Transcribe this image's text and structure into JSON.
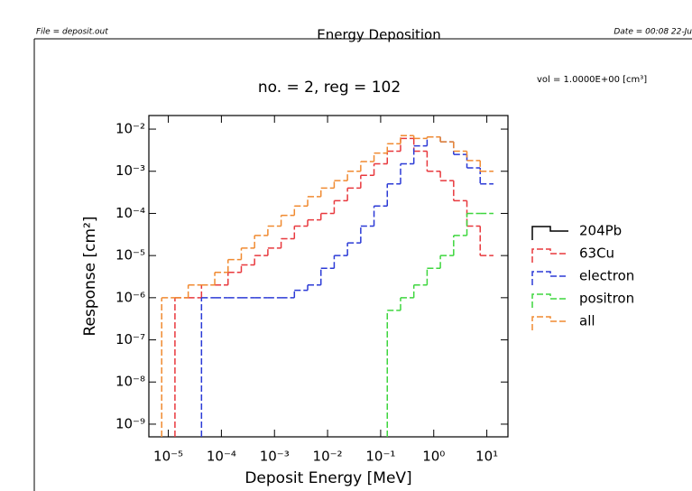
{
  "chart_data": {
    "type": "step",
    "title": "Energy Deposition",
    "subtitle": "no. =  2,  reg =    102",
    "file": "File = deposit.out",
    "date": "Date = 00:08 22-Ju",
    "annotation": "vol  =   1.0000E+00 [cm³]",
    "xlabel": "Deposit Energy [MeV]",
    "ylabel": "Response [cm²]",
    "log_x": true,
    "log_y": true,
    "xlim": [
      4.3e-06,
      25
    ],
    "ylim": [
      5e-10,
      0.021
    ],
    "xticks": [
      {
        "value": 1e-05,
        "label": "10⁻⁵"
      },
      {
        "value": 0.0001,
        "label": "10⁻⁴"
      },
      {
        "value": 0.001,
        "label": "10⁻³"
      },
      {
        "value": 0.01,
        "label": "10⁻²"
      },
      {
        "value": 0.1,
        "label": "10⁻¹"
      },
      {
        "value": 1,
        "label": "10⁰"
      },
      {
        "value": 10,
        "label": "10¹"
      }
    ],
    "yticks": [
      {
        "value": 1e-09,
        "label": "10⁻⁹"
      },
      {
        "value": 1e-08,
        "label": "10⁻⁸"
      },
      {
        "value": 1e-07,
        "label": "10⁻⁷"
      },
      {
        "value": 1e-06,
        "label": "10⁻⁶"
      },
      {
        "value": 1e-05,
        "label": "10⁻⁵"
      },
      {
        "value": 0.0001,
        "label": "10⁻⁴"
      },
      {
        "value": 0.001,
        "label": "10⁻³"
      },
      {
        "value": 0.01,
        "label": "10⁻²"
      }
    ],
    "x": [
      1e-05,
      1.778e-05,
      3.162e-05,
      5.623e-05,
      0.0001,
      0.0001778,
      0.0003162,
      0.0005623,
      0.001,
      0.001778,
      0.003162,
      0.005623,
      0.01,
      0.01778,
      0.03162,
      0.05623,
      0.1,
      0.1778,
      0.3162,
      0.5623,
      1,
      1.778,
      3.162,
      5.623,
      10
    ],
    "series": [
      {
        "name": "204Pb",
        "color": "#000000",
        "values": [
          null,
          null,
          null,
          null,
          null,
          null,
          null,
          null,
          null,
          null,
          null,
          null,
          null,
          null,
          null,
          null,
          null,
          null,
          null,
          null,
          null,
          null,
          null,
          null,
          null
        ]
      },
      {
        "name": "63Cu",
        "color": "#e8383d",
        "values": [
          null,
          1e-06,
          1e-06,
          2e-06,
          2e-06,
          4e-06,
          6e-06,
          1e-05,
          1.5e-05,
          2.5e-05,
          5e-05,
          7e-05,
          0.0001,
          0.0002,
          0.0004,
          0.0008,
          0.0015,
          0.003,
          0.006,
          0.003,
          0.001,
          0.0006,
          0.0002,
          5e-05,
          1e-05
        ]
      },
      {
        "name": "electron",
        "color": "#2b3ad6",
        "values": [
          null,
          null,
          null,
          1e-06,
          1e-06,
          1e-06,
          1e-06,
          1e-06,
          1e-06,
          1e-06,
          1.5e-06,
          2e-06,
          5e-06,
          1e-05,
          2e-05,
          5e-05,
          0.00015,
          0.0005,
          0.0015,
          0.004,
          0.0065,
          0.005,
          0.0025,
          0.0012,
          0.0005
        ]
      },
      {
        "name": "positron",
        "color": "#3ed63e",
        "values": [
          null,
          null,
          null,
          null,
          null,
          null,
          null,
          null,
          null,
          null,
          null,
          null,
          null,
          null,
          null,
          null,
          null,
          5e-07,
          1e-06,
          2e-06,
          5e-06,
          1e-05,
          3e-05,
          0.0001,
          0.0001
        ]
      },
      {
        "name": "all",
        "color": "#f08a30",
        "values": [
          1e-06,
          1e-06,
          2e-06,
          2e-06,
          4e-06,
          8e-06,
          1.5e-05,
          3e-05,
          5e-05,
          9e-05,
          0.00015,
          0.00025,
          0.0004,
          0.0006,
          0.001,
          0.0017,
          0.0027,
          0.0045,
          0.007,
          0.006,
          0.0065,
          0.005,
          0.003,
          0.0018,
          0.001
        ]
      }
    ]
  }
}
